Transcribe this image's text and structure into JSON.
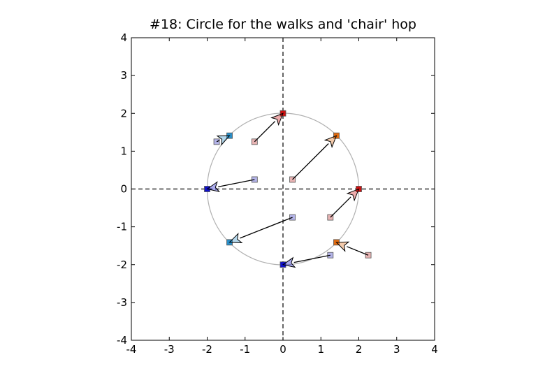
{
  "chart_data": {
    "type": "scatter",
    "title": "#18: Circle for the walks and 'chair' hop",
    "xlabel": "",
    "ylabel": "",
    "xlim": [
      -4,
      4
    ],
    "ylim": [
      -4,
      4
    ],
    "grid": false,
    "legend": "none",
    "xticks": [
      "-4",
      "-3",
      "-2",
      "-1",
      "0",
      "1",
      "2",
      "3",
      "4"
    ],
    "yticks": [
      "-4",
      "-3",
      "-2",
      "-1",
      "0",
      "1",
      "2",
      "3",
      "4"
    ],
    "circle": {
      "cx": 0,
      "cy": 0,
      "r": 2,
      "color": "#b0b0b0"
    },
    "reference_lines": [
      {
        "orientation": "horizontal",
        "value": 0,
        "style": "dashed"
      },
      {
        "orientation": "vertical",
        "value": 0,
        "style": "dashed"
      }
    ],
    "moves": [
      {
        "from": [
          -0.75,
          1.25
        ],
        "to": [
          0,
          2
        ],
        "start_color": "#e8b4b4",
        "end_color": "#cc1111"
      },
      {
        "from": [
          0.25,
          0.25
        ],
        "to": [
          1.41,
          1.41
        ],
        "start_color": "#e8b4b4",
        "end_color": "#e06a10"
      },
      {
        "from": [
          1.25,
          -0.75
        ],
        "to": [
          2,
          0
        ],
        "start_color": "#e8b4b4",
        "end_color": "#cc1111"
      },
      {
        "from": [
          2.25,
          -1.75
        ],
        "to": [
          1.41,
          -1.41
        ],
        "start_color": "#e8b4b4",
        "end_color": "#e06a10"
      },
      {
        "from": [
          1.25,
          -1.75
        ],
        "to": [
          0,
          -2
        ],
        "start_color": "#b4b4e8",
        "end_color": "#1111cc"
      },
      {
        "from": [
          0.25,
          -0.75
        ],
        "to": [
          -1.41,
          -1.41
        ],
        "start_color": "#b4b4e8",
        "end_color": "#2a8fc8"
      },
      {
        "from": [
          -0.75,
          0.25
        ],
        "to": [
          -2,
          0
        ],
        "start_color": "#b4b4e8",
        "end_color": "#1111cc"
      },
      {
        "from": [
          -1.75,
          1.25
        ],
        "to": [
          -1.41,
          1.41
        ],
        "start_color": "#b4b4e8",
        "end_color": "#2a8fc8"
      }
    ]
  }
}
